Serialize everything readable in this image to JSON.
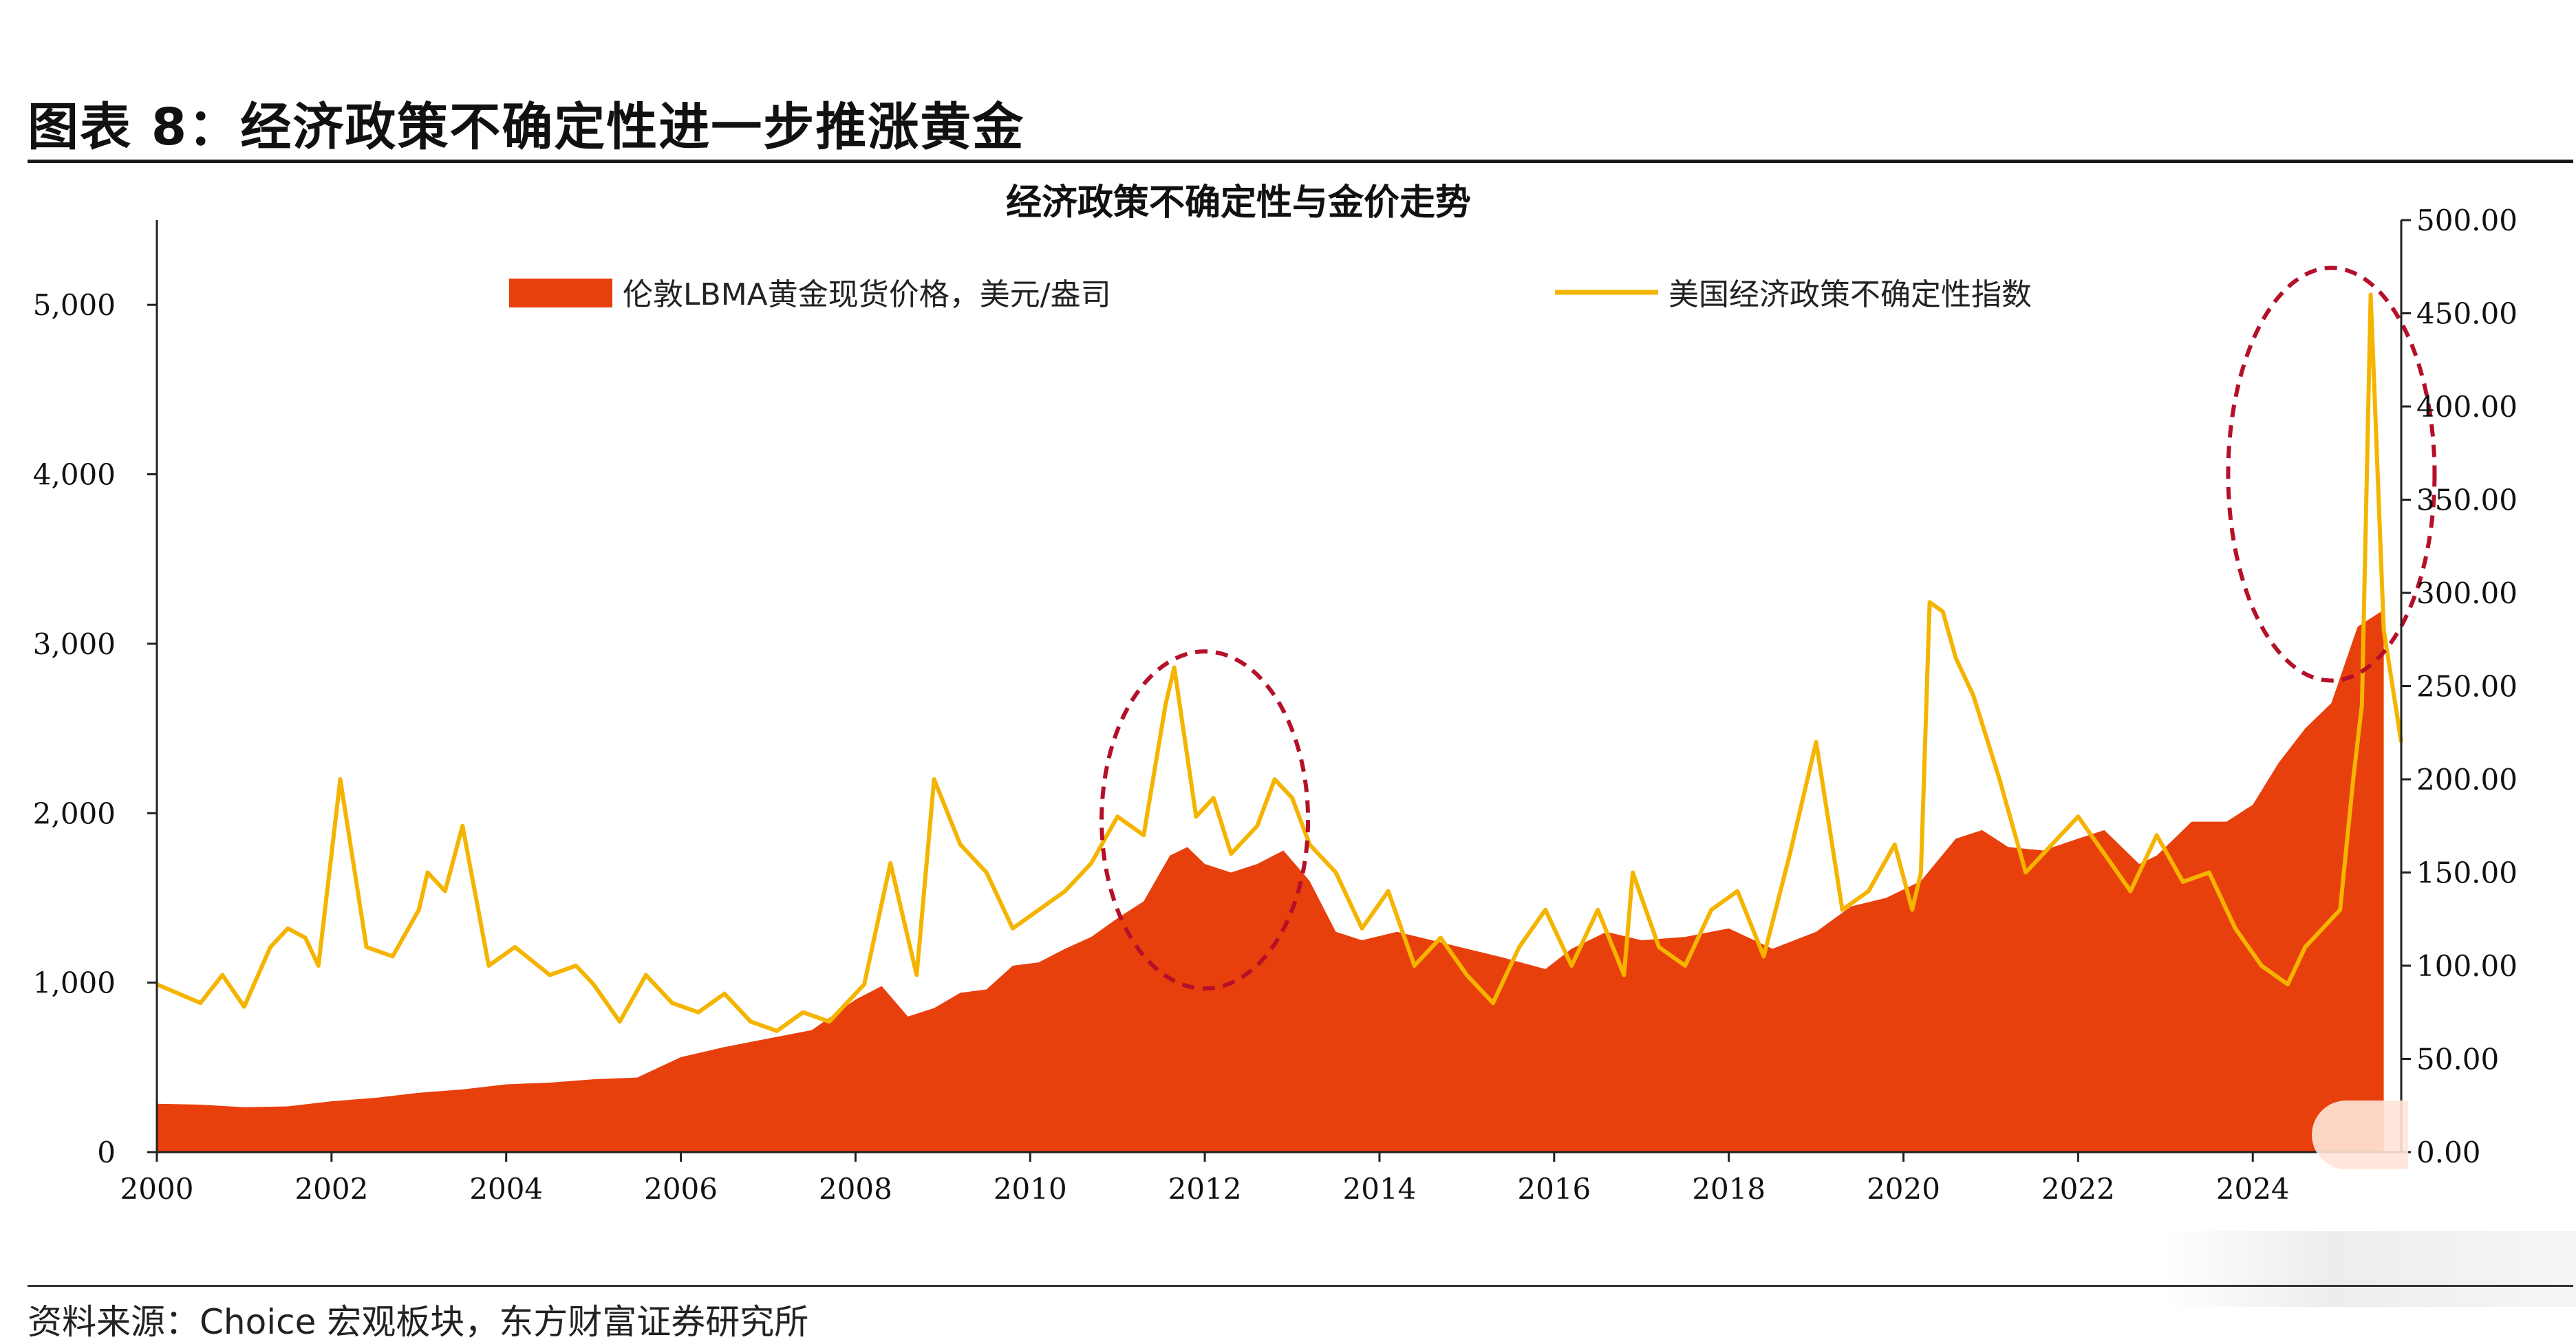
{
  "header": {
    "title": "图表 8：经济政策不确定性进一步推涨黄金",
    "source": "资料来源：Choice 宏观板块，东方财富证券研究所"
  },
  "chart_data": {
    "type": "area",
    "title": "经济政策不确定性与金价走势",
    "x_ticks": [
      "2000",
      "2002",
      "2004",
      "2006",
      "2008",
      "2010",
      "2012",
      "2014",
      "2016",
      "2018",
      "2020",
      "2022",
      "2024"
    ],
    "xlim": [
      2000,
      2025.7
    ],
    "y_left": {
      "ticks": [
        "0",
        "1,000",
        "2,000",
        "3,000",
        "4,000",
        "5,000"
      ],
      "lim": [
        0,
        5500
      ]
    },
    "y_right": {
      "ticks": [
        "0.00",
        "50.00",
        "100.00",
        "150.00",
        "200.00",
        "250.00",
        "300.00",
        "350.00",
        "400.00",
        "450.00",
        "500.00"
      ],
      "lim": [
        0,
        500
      ]
    },
    "legend_position": "top",
    "series": [
      {
        "name": "伦敦LBMA黄金现货价格，美元/盎司",
        "type": "area",
        "axis": "left",
        "color": "#e8400c",
        "x": [
          2000,
          2000.5,
          2001,
          2001.5,
          2002,
          2002.5,
          2003,
          2003.5,
          2004,
          2004.5,
          2005,
          2005.5,
          2006,
          2006.5,
          2007,
          2007.5,
          2008,
          2008.3,
          2008.6,
          2008.9,
          2009.2,
          2009.5,
          2009.8,
          2010.1,
          2010.4,
          2010.7,
          2011,
          2011.3,
          2011.6,
          2011.8,
          2012,
          2012.3,
          2012.6,
          2012.9,
          2013.2,
          2013.5,
          2013.8,
          2014.2,
          2014.6,
          2015,
          2015.4,
          2015.9,
          2016.2,
          2016.6,
          2017,
          2017.5,
          2018,
          2018.5,
          2019,
          2019.4,
          2019.8,
          2020.2,
          2020.6,
          2020.9,
          2021.2,
          2021.6,
          2022,
          2022.3,
          2022.7,
          2022.9,
          2023.3,
          2023.7,
          2024,
          2024.3,
          2024.6,
          2024.9,
          2025.2,
          2025.5
        ],
        "values": [
          285,
          280,
          265,
          270,
          300,
          320,
          350,
          370,
          400,
          410,
          430,
          440,
          560,
          620,
          670,
          720,
          900,
          980,
          800,
          850,
          940,
          960,
          1100,
          1120,
          1200,
          1270,
          1380,
          1480,
          1750,
          1800,
          1700,
          1650,
          1700,
          1780,
          1600,
          1300,
          1250,
          1300,
          1250,
          1200,
          1150,
          1080,
          1200,
          1300,
          1250,
          1270,
          1320,
          1200,
          1300,
          1450,
          1500,
          1600,
          1850,
          1900,
          1800,
          1780,
          1850,
          1900,
          1700,
          1750,
          1950,
          1950,
          2050,
          2300,
          2500,
          2650,
          3100,
          3200
        ]
      },
      {
        "name": "美国经济政策不确定性指数",
        "type": "line",
        "axis": "right",
        "color": "#f4b400",
        "x": [
          2000,
          2000.25,
          2000.5,
          2000.75,
          2001,
          2001.3,
          2001.5,
          2001.7,
          2001.85,
          2002.1,
          2002.4,
          2002.7,
          2003,
          2003.1,
          2003.3,
          2003.5,
          2003.8,
          2004.1,
          2004.5,
          2004.8,
          2005,
          2005.3,
          2005.6,
          2005.9,
          2006.2,
          2006.5,
          2006.8,
          2007.1,
          2007.4,
          2007.7,
          2007.9,
          2008.1,
          2008.4,
          2008.7,
          2008.9,
          2009.2,
          2009.5,
          2009.8,
          2010.1,
          2010.4,
          2010.7,
          2011,
          2011.3,
          2011.55,
          2011.65,
          2011.9,
          2012.1,
          2012.3,
          2012.6,
          2012.8,
          2013,
          2013.2,
          2013.5,
          2013.8,
          2014.1,
          2014.4,
          2014.7,
          2015,
          2015.3,
          2015.6,
          2015.9,
          2016.2,
          2016.5,
          2016.8,
          2016.9,
          2017.2,
          2017.5,
          2017.8,
          2018.1,
          2018.4,
          2018.7,
          2019,
          2019.3,
          2019.6,
          2019.9,
          2020.1,
          2020.2,
          2020.3,
          2020.45,
          2020.6,
          2020.8,
          2021.1,
          2021.4,
          2021.7,
          2022,
          2022.3,
          2022.6,
          2022.9,
          2023.2,
          2023.5,
          2023.8,
          2024.1,
          2024.4,
          2024.6,
          2024.8,
          2025.0,
          2025.15,
          2025.25,
          2025.35,
          2025.5,
          2025.7
        ],
        "values": [
          90,
          85,
          80,
          95,
          78,
          110,
          120,
          115,
          100,
          200,
          110,
          105,
          130,
          150,
          140,
          175,
          100,
          110,
          95,
          100,
          90,
          70,
          95,
          80,
          75,
          85,
          70,
          65,
          75,
          70,
          80,
          90,
          155,
          95,
          200,
          165,
          150,
          120,
          130,
          140,
          155,
          180,
          170,
          240,
          260,
          180,
          190,
          160,
          175,
          200,
          190,
          165,
          150,
          120,
          140,
          100,
          115,
          95,
          80,
          110,
          130,
          100,
          130,
          95,
          150,
          110,
          100,
          130,
          140,
          105,
          160,
          220,
          130,
          140,
          165,
          130,
          150,
          295,
          290,
          265,
          245,
          200,
          150,
          165,
          180,
          160,
          140,
          170,
          145,
          150,
          120,
          100,
          90,
          110,
          120,
          130,
          200,
          240,
          460,
          280,
          220
        ]
      }
    ],
    "annotations": [
      {
        "shape": "dashed-ellipse",
        "center_x": 2012,
        "center_value_left": 1960
      },
      {
        "shape": "dashed-ellipse",
        "center_x": 2024.9,
        "center_value_left": 4000
      }
    ]
  }
}
